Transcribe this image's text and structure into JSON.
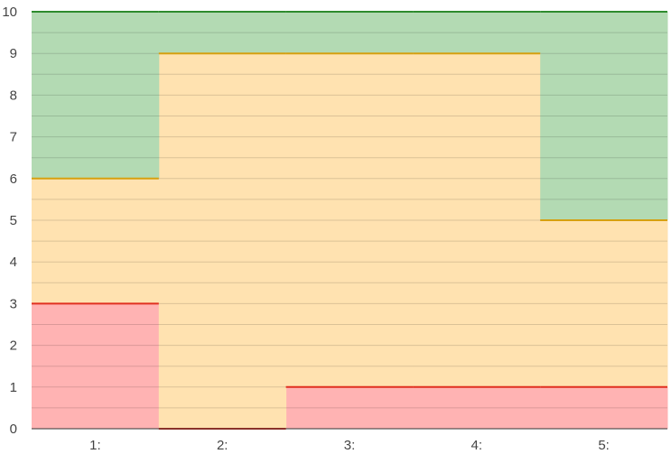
{
  "chart_data": {
    "type": "area",
    "categories": [
      "1:",
      "2:",
      "3:",
      "4:",
      "5:"
    ],
    "series": [
      {
        "color": "#ffb3b3",
        "line_color": "#e03020",
        "values": [
          3,
          0,
          1,
          1,
          1
        ]
      },
      {
        "color": "#ffe2b0",
        "line_color": "#d6a010",
        "values": [
          6,
          9,
          9,
          9,
          5
        ]
      },
      {
        "color": "#b3dab3",
        "line_color": "#2e8b2e",
        "values": [
          10,
          10,
          10,
          10,
          10
        ]
      }
    ],
    "ylim": [
      0,
      10
    ],
    "yticks": [
      0,
      1,
      2,
      3,
      4,
      5,
      6,
      7,
      8,
      9,
      10
    ],
    "minor_grid_step": 0.5,
    "grid": true,
    "step_shape": true,
    "title": "",
    "xlabel": "",
    "ylabel": ""
  }
}
